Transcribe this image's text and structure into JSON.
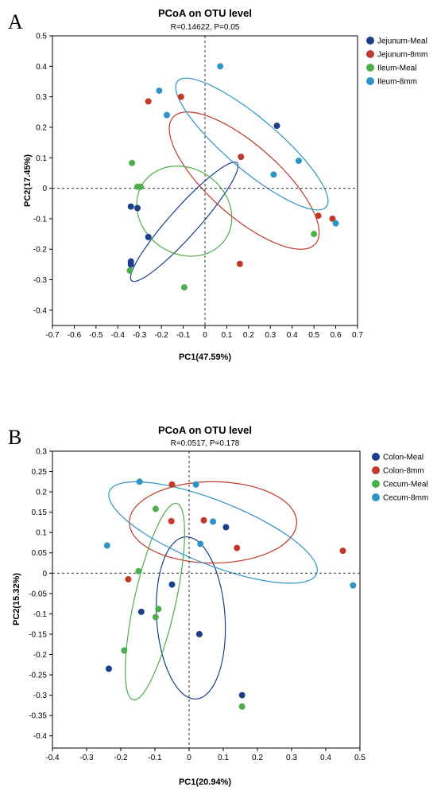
{
  "panels": [
    {
      "label": "A",
      "chart_data": {
        "type": "scatter",
        "title": "PCoA on OTU level",
        "subtitle": "R=0.14622, P=0.05",
        "xlabel": "PC1(47.59%)",
        "ylabel": "PC2(17.45%)",
        "xlim": [
          -0.7,
          0.7
        ],
        "ylim": [
          -0.45,
          0.5
        ],
        "xticks": [
          -0.7,
          -0.6,
          -0.5,
          -0.4,
          -0.3,
          -0.2,
          -0.1,
          0,
          0.1,
          0.2,
          0.3,
          0.4,
          0.5,
          0.6,
          0.7
        ],
        "yticks": [
          -0.4,
          -0.3,
          -0.2,
          -0.1,
          0,
          0.1,
          0.2,
          0.3,
          0.4,
          0.5
        ],
        "xtick_labels": [
          "-0.7",
          "-0.6",
          "-0.5",
          "-0.4",
          "-0.3",
          "-0.2",
          "-0.1",
          "0",
          "0.1",
          "0.2",
          "0.3",
          "0.4",
          "0.5",
          "0.6",
          "0.7"
        ],
        "ytick_labels": [
          "-0.4",
          "-0.3",
          "-0.2",
          "-0.1",
          "0",
          "0.1",
          "0.2",
          "0.3",
          "0.4",
          "0.5"
        ],
        "grid": false,
        "reference_lines": "dashed at x=0 and y=0",
        "legend_position": "top-right",
        "series": [
          {
            "name": "Jejunum-Meal",
            "color": "#1b3f8b",
            "points": [
              [
                0.33,
                0.205
              ],
              [
                -0.34,
                -0.06
              ],
              [
                -0.31,
                -0.065
              ],
              [
                -0.26,
                -0.16
              ],
              [
                -0.34,
                -0.24
              ],
              [
                -0.34,
                -0.25
              ]
            ],
            "ellipse": {
              "center": [
                -0.095,
                -0.11
              ],
              "semi_major": 0.31,
              "semi_minor": 0.055,
              "angle_deg": 38
            }
          },
          {
            "name": "Jejunum-8mm",
            "color": "#c0392b",
            "points": [
              [
                -0.26,
                0.285
              ],
              [
                -0.11,
                0.3
              ],
              [
                0.165,
                0.103
              ],
              [
                0.16,
                -0.248
              ],
              [
                0.52,
                -0.09
              ],
              [
                0.585,
                -0.1
              ]
            ],
            "ellipse": {
              "center": [
                0.18,
                0.025
              ],
              "semi_major": 0.39,
              "semi_minor": 0.13,
              "angle_deg": -30
            }
          },
          {
            "name": "Ileum-Meal",
            "color": "#4cae4c",
            "points": [
              [
                -0.335,
                0.083
              ],
              [
                -0.31,
                0.005
              ],
              [
                -0.295,
                0.005
              ],
              [
                -0.345,
                -0.27
              ],
              [
                -0.095,
                -0.325
              ],
              [
                0.5,
                -0.15
              ]
            ],
            "ellipse": {
              "center": [
                -0.095,
                -0.075
              ],
              "semi_major": 0.22,
              "semi_minor": 0.145,
              "angle_deg": -10
            }
          },
          {
            "name": "Ileum-8mm",
            "color": "#2e95c6",
            "points": [
              [
                0.07,
                0.4
              ],
              [
                -0.21,
                0.32
              ],
              [
                -0.175,
                0.24
              ],
              [
                0.43,
                0.09
              ],
              [
                0.315,
                0.045
              ],
              [
                0.6,
                -0.115
              ]
            ],
            "ellipse": {
              "center": [
                0.215,
                0.145
              ],
              "semi_major": 0.4,
              "semi_minor": 0.095,
              "angle_deg": -30
            }
          }
        ]
      }
    },
    {
      "label": "B",
      "chart_data": {
        "type": "scatter",
        "title": "PCoA on OTU level",
        "subtitle": "R=0.0517, P=0.178",
        "xlabel": "PC1(20.94%)",
        "ylabel": "PC2(15.32%)",
        "xlim": [
          -0.4,
          0.5
        ],
        "ylim": [
          -0.43,
          0.3
        ],
        "xticks": [
          -0.4,
          -0.3,
          -0.2,
          -0.1,
          0,
          0.1,
          0.2,
          0.3,
          0.4,
          0.5
        ],
        "yticks": [
          -0.4,
          -0.35,
          -0.3,
          -0.25,
          -0.2,
          -0.15,
          -0.1,
          -0.05,
          0,
          0.05,
          0.1,
          0.15,
          0.2,
          0.25,
          0.3
        ],
        "xtick_labels": [
          "-0.4",
          "-0.3",
          "-0.2",
          "-0.1",
          "0",
          "0.1",
          "0.2",
          "0.3",
          "0.4",
          "0.5"
        ],
        "ytick_labels": [
          "-0.4",
          "-0.35",
          "-0.3",
          "-0.25",
          "-0.2",
          "-0.15",
          "-0.1",
          "-0.05",
          "0",
          "0.05",
          "0.1",
          "0.15",
          "0.2",
          "0.25",
          "0.3"
        ],
        "grid": false,
        "reference_lines": "dashed at x=0 and y=0",
        "legend_position": "top-right",
        "series": [
          {
            "name": "Colon-Meal",
            "color": "#1b3f8b",
            "points": [
              [
                -0.235,
                -0.235
              ],
              [
                -0.14,
                -0.095
              ],
              [
                -0.05,
                -0.028
              ],
              [
                0.108,
                0.113
              ],
              [
                0.03,
                -0.15
              ],
              [
                0.155,
                -0.3
              ]
            ],
            "ellipse": {
              "center": [
                0.005,
                -0.11
              ],
              "semi_major": 0.2,
              "semi_minor": 0.1,
              "angle_deg": 95
            }
          },
          {
            "name": "Colon-8mm",
            "color": "#c0392b",
            "points": [
              [
                -0.05,
                0.218
              ],
              [
                -0.052,
                0.128
              ],
              [
                0.043,
                0.13
              ],
              [
                0.14,
                0.062
              ],
              [
                0.45,
                0.055
              ],
              [
                -0.178,
                -0.015
              ]
            ],
            "ellipse": {
              "center": [
                0.07,
                0.125
              ],
              "semi_major": 0.245,
              "semi_minor": 0.1,
              "angle_deg": 0
            }
          },
          {
            "name": "Cecum-Meal",
            "color": "#4cae4c",
            "points": [
              [
                -0.098,
                0.158
              ],
              [
                -0.148,
                0.005
              ],
              [
                -0.09,
                -0.088
              ],
              [
                -0.098,
                -0.108
              ],
              [
                -0.19,
                -0.19
              ],
              [
                0.155,
                -0.328
              ]
            ],
            "ellipse": {
              "center": [
                -0.1,
                -0.07
              ],
              "semi_major": 0.25,
              "semi_minor": 0.06,
              "angle_deg": 75
            }
          },
          {
            "name": "Cecum-8mm",
            "color": "#2e95c6",
            "points": [
              [
                -0.145,
                0.225
              ],
              [
                0.02,
                0.218
              ],
              [
                -0.24,
                0.068
              ],
              [
                0.033,
                0.072
              ],
              [
                0.07,
                0.127
              ],
              [
                0.48,
                -0.03
              ]
            ],
            "ellipse": {
              "center": [
                0.07,
                0.1
              ],
              "semi_major": 0.32,
              "semi_minor": 0.08,
              "angle_deg": -18
            }
          }
        ]
      }
    }
  ]
}
